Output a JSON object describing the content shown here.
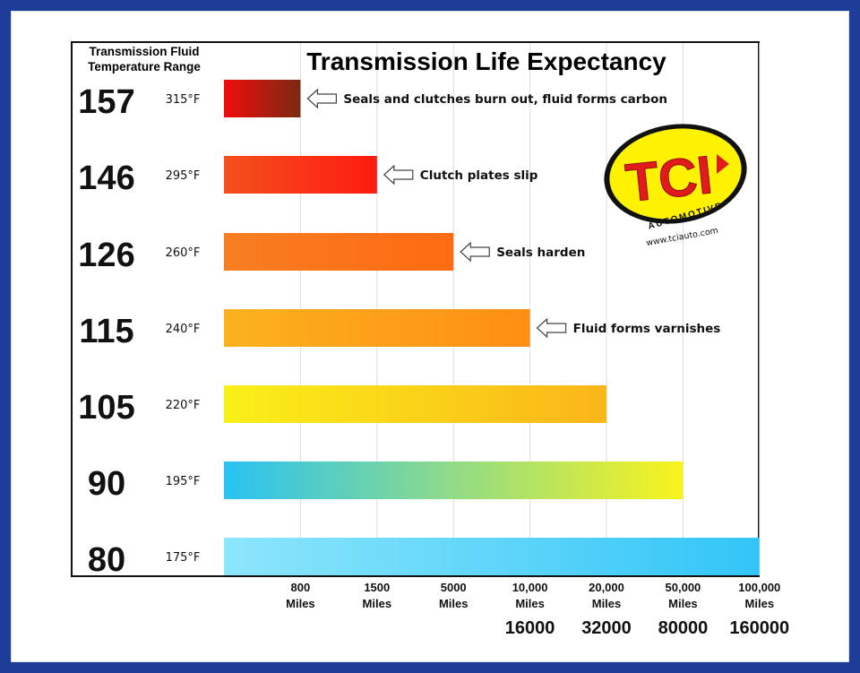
{
  "chart_data": {
    "type": "bar",
    "orientation": "horizontal",
    "title": "Transmission Life Expectancy",
    "row_header": [
      "Transmission Fluid",
      "Temperature Range"
    ],
    "rows": [
      {
        "celsius": "157",
        "fahrenheit": "315°F",
        "miles_label": "800 Miles",
        "km_label": "",
        "annotation": "Seals and clutches burn out, fluid forms carbon",
        "colors": [
          "#f00d0d",
          "#7a2a12"
        ]
      },
      {
        "celsius": "146",
        "fahrenheit": "295°F",
        "miles_label": "1500 Miles",
        "km_label": "",
        "annotation": "Clutch plates slip",
        "colors": [
          "#f4501c",
          "#ff1a10"
        ]
      },
      {
        "celsius": "126",
        "fahrenheit": "260°F",
        "miles_label": "5000 Miles",
        "km_label": "",
        "annotation": "Seals harden",
        "colors": [
          "#f77e22",
          "#ff6a12"
        ]
      },
      {
        "celsius": "115",
        "fahrenheit": "240°F",
        "miles_label": "10,000 Miles",
        "km_label": "16000",
        "annotation": "Fluid forms varnishes",
        "colors": [
          "#fbb21e",
          "#ff8e14"
        ]
      },
      {
        "celsius": "105",
        "fahrenheit": "220°F",
        "miles_label": "20,000 Miles",
        "km_label": "32000",
        "annotation": "",
        "colors": [
          "#f9f019",
          "#fbb519"
        ]
      },
      {
        "celsius": "90",
        "fahrenheit": "195°F",
        "miles_label": "50,000 Miles",
        "km_label": "80000",
        "annotation": "",
        "colors": [
          "#28c2f3",
          "#f9f31c"
        ]
      },
      {
        "celsius": "80",
        "fahrenheit": "175°F",
        "miles_label": "100,000 Miles",
        "km_label": "160000",
        "annotation": "",
        "colors": [
          "#8de6fb",
          "#32c5f7"
        ]
      }
    ],
    "x_axis": {
      "categories": [
        "800 Miles",
        "1500 Miles",
        "5000 Miles",
        "10,000 Miles",
        "20,000 Miles",
        "50,000 Miles",
        "100,000 Miles"
      ],
      "km_values": [
        "",
        "",
        "",
        "16000",
        "32000",
        "80000",
        "160000"
      ],
      "scale": "categorical",
      "grid": true
    },
    "legend": "none"
  },
  "logo": {
    "wordmark": "TCI",
    "sub": "AUTOMOTIVE",
    "url": "www.tciauto.com",
    "colors": {
      "fill": "#fff200",
      "text": "#e11b1b",
      "ring": "#111111"
    }
  }
}
